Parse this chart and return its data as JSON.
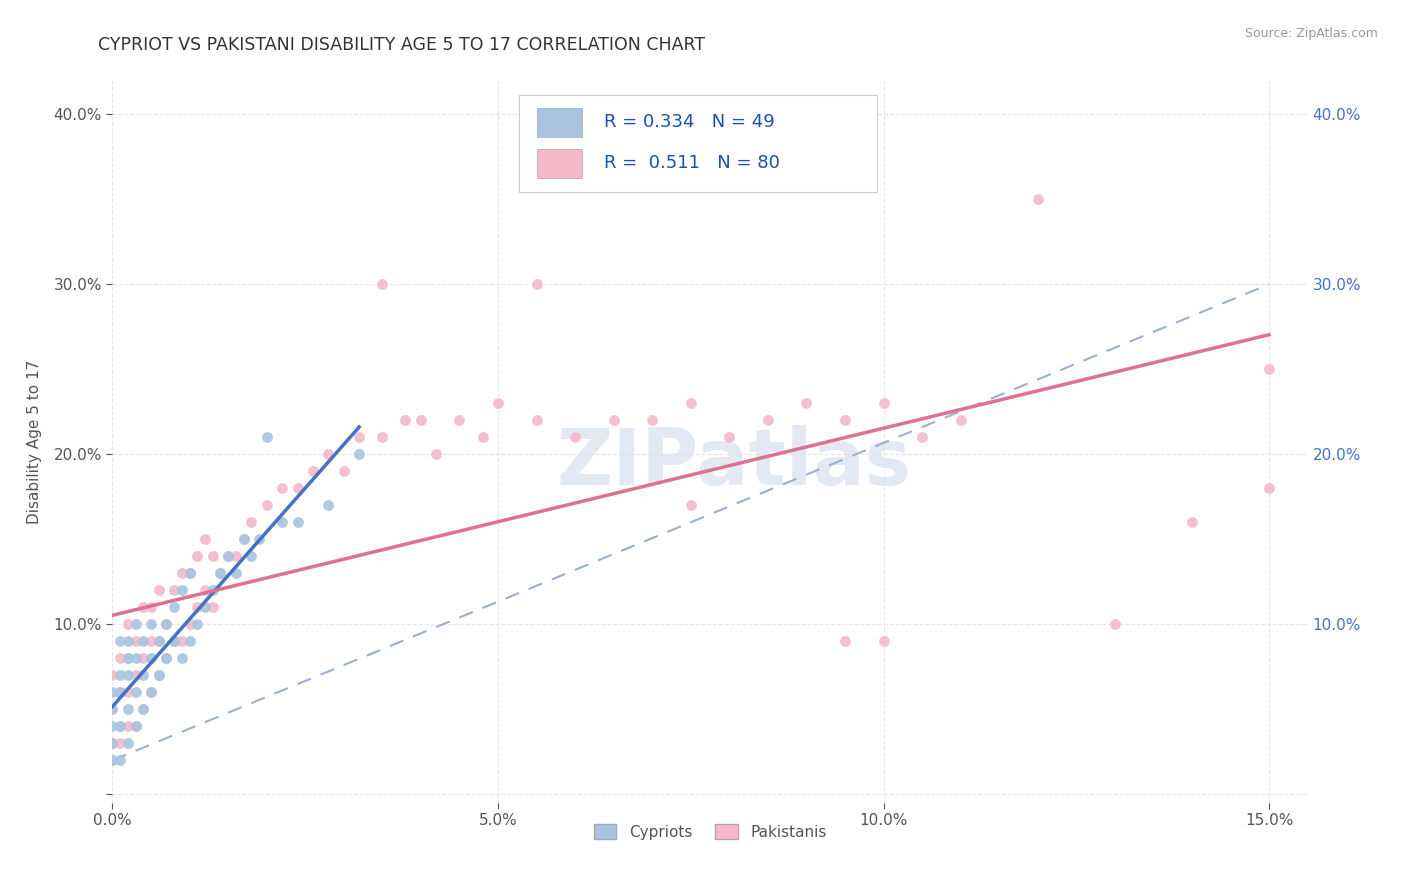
{
  "title": "CYPRIOT VS PAKISTANI DISABILITY AGE 5 TO 17 CORRELATION CHART",
  "source": "Source: ZipAtlas.com",
  "ylabel": "Disability Age 5 to 17",
  "xlim": [
    0.0,
    0.155
  ],
  "ylim": [
    -0.005,
    0.42
  ],
  "xticks": [
    0.0,
    0.05,
    0.1,
    0.15
  ],
  "xtick_labels": [
    "0.0%",
    "5.0%",
    "10.0%",
    "15.0%"
  ],
  "yticks": [
    0.0,
    0.1,
    0.2,
    0.3,
    0.4
  ],
  "ytick_labels_left": [
    "",
    "10.0%",
    "20.0%",
    "30.0%",
    "40.0%"
  ],
  "ytick_labels_right": [
    "10.0%",
    "20.0%",
    "30.0%",
    "40.0%"
  ],
  "cypriot_color": "#a8c4e0",
  "pakistani_color": "#f4b8c8",
  "cypriot_line_color": "#4472c4",
  "pakistani_line_color": "#e07090",
  "dashed_line_color": "#9ab0d0",
  "R_cypriot": 0.334,
  "N_cypriot": 49,
  "R_pakistani": 0.511,
  "N_pakistani": 80,
  "legend_label_cypriot": "Cypriots",
  "legend_label_pakistani": "Pakistanis",
  "watermark_text": "ZIPatlas",
  "background_color": "#ffffff",
  "grid_color": "#e0e0e0",
  "title_color": "#333333",
  "axis_label_color": "#555555",
  "tick_label_color": "#555555",
  "right_tick_color": "#4472c4",
  "legend_text_color": "#1a50b0",
  "source_color": "#999999",
  "cypriot_x": [
    0.0,
    0.0,
    0.0,
    0.0,
    0.0,
    0.001,
    0.001,
    0.001,
    0.001,
    0.001,
    0.002,
    0.002,
    0.002,
    0.002,
    0.002,
    0.003,
    0.003,
    0.003,
    0.003,
    0.004,
    0.004,
    0.004,
    0.005,
    0.005,
    0.005,
    0.006,
    0.006,
    0.007,
    0.007,
    0.008,
    0.008,
    0.009,
    0.009,
    0.01,
    0.01,
    0.011,
    0.012,
    0.013,
    0.014,
    0.015,
    0.016,
    0.017,
    0.018,
    0.019,
    0.02,
    0.022,
    0.024,
    0.028,
    0.032
  ],
  "cypriot_y": [
    0.02,
    0.03,
    0.04,
    0.05,
    0.06,
    0.02,
    0.04,
    0.06,
    0.07,
    0.09,
    0.03,
    0.05,
    0.07,
    0.08,
    0.09,
    0.04,
    0.06,
    0.08,
    0.1,
    0.05,
    0.07,
    0.09,
    0.06,
    0.08,
    0.1,
    0.07,
    0.09,
    0.08,
    0.1,
    0.09,
    0.11,
    0.08,
    0.12,
    0.09,
    0.13,
    0.1,
    0.11,
    0.12,
    0.13,
    0.14,
    0.13,
    0.15,
    0.14,
    0.15,
    0.21,
    0.16,
    0.16,
    0.17,
    0.2
  ],
  "pakistani_x": [
    0.0,
    0.0,
    0.0,
    0.0,
    0.001,
    0.001,
    0.001,
    0.001,
    0.002,
    0.002,
    0.002,
    0.002,
    0.003,
    0.003,
    0.003,
    0.004,
    0.004,
    0.004,
    0.005,
    0.005,
    0.005,
    0.006,
    0.006,
    0.006,
    0.007,
    0.007,
    0.008,
    0.008,
    0.009,
    0.009,
    0.01,
    0.01,
    0.011,
    0.011,
    0.012,
    0.012,
    0.013,
    0.013,
    0.014,
    0.015,
    0.016,
    0.017,
    0.018,
    0.02,
    0.022,
    0.024,
    0.026,
    0.028,
    0.03,
    0.032,
    0.035,
    0.038,
    0.04,
    0.042,
    0.045,
    0.048,
    0.05,
    0.055,
    0.06,
    0.065,
    0.07,
    0.075,
    0.08,
    0.085,
    0.09,
    0.095,
    0.1,
    0.105,
    0.11,
    0.12,
    0.055,
    0.13,
    0.095,
    0.035,
    0.075,
    0.1,
    0.14,
    0.15,
    0.008,
    0.15
  ],
  "pakistani_y": [
    0.02,
    0.03,
    0.05,
    0.07,
    0.03,
    0.04,
    0.06,
    0.08,
    0.04,
    0.06,
    0.08,
    0.1,
    0.04,
    0.07,
    0.09,
    0.05,
    0.08,
    0.11,
    0.06,
    0.09,
    0.11,
    0.07,
    0.09,
    0.12,
    0.08,
    0.1,
    0.09,
    0.12,
    0.09,
    0.13,
    0.1,
    0.13,
    0.11,
    0.14,
    0.12,
    0.15,
    0.11,
    0.14,
    0.13,
    0.14,
    0.14,
    0.15,
    0.16,
    0.17,
    0.18,
    0.18,
    0.19,
    0.2,
    0.19,
    0.21,
    0.21,
    0.22,
    0.22,
    0.2,
    0.22,
    0.21,
    0.23,
    0.22,
    0.21,
    0.22,
    0.22,
    0.23,
    0.21,
    0.22,
    0.23,
    0.22,
    0.23,
    0.21,
    0.22,
    0.35,
    0.3,
    0.1,
    0.09,
    0.3,
    0.17,
    0.09,
    0.16,
    0.18,
    0.09,
    0.25
  ]
}
